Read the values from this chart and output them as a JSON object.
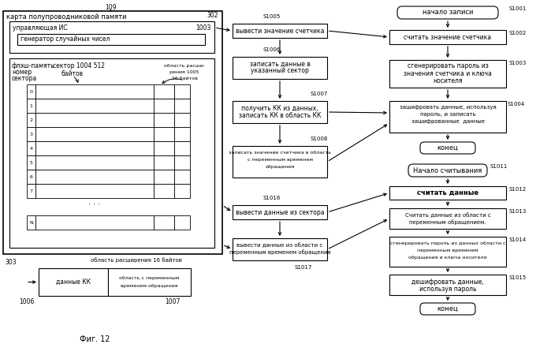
{
  "bg_color": "#ffffff",
  "fig_title": "Фиг. 12",
  "label_109": "109",
  "label_302": "302",
  "label_1003": "1003",
  "label_303": "303",
  "label_1006": "1006",
  "label_1007": "1007",
  "label_S1001": "S1001",
  "label_S1002": "S1002",
  "label_S1003": "S1003",
  "label_S1004": "S1004",
  "label_S1005": "S1005",
  "label_S1006": "S1006",
  "label_S1007": "S1007",
  "label_S1008": "S1008",
  "label_S1011": "S1011",
  "label_S1012": "S1012",
  "label_S1013": "S1013",
  "label_S1014": "S1014",
  "label_S1015": "S1015",
  "label_S1016": "S1016",
  "label_S1017": "S1017",
  "txt_card": "карта полупроводниковой памяти",
  "txt_ctrl": "управляющая ИС",
  "txt_gen": "генератор случайных чисел",
  "txt_flash": "флэш-память",
  "txt_sector_num": "номер",
  "txt_sector_num2": "сектора",
  "txt_sector1004": "сектор 1004 512",
  "txt_bytes": "байтов",
  "txt_ext1": "область расши-",
  "txt_ext2": "рения 1005",
  "txt_ext3": "16 байтов",
  "txt_ext_bot": "область расширения 16 байтов",
  "txt_kk": "данные КК",
  "txt_var": "область с переменным",
  "txt_var2": "временем обращения",
  "txt_start_write": "начало записи",
  "txt_read_counter": "считать значение счетчика",
  "txt_gen_pass1": "сгенерировать пароль из",
  "txt_gen_pass2": "значения счетчика и ключа",
  "txt_gen_pass3": "носителя",
  "txt_enc1": "зашифровать данные, используя",
  "txt_enc2": "пароль, и записать",
  "txt_enc3": "зашифрованные  данные",
  "txt_end": "конец",
  "txt_start_read": "Начало считывания",
  "txt_read_data": "считать данные",
  "txt_read_var1": "Считать данные из области с",
  "txt_read_var2": "переменным обращением.",
  "txt_gen_pass_read1": "сгенерировать пароль из данных области с",
  "txt_gen_pass_read2": "переменным временем",
  "txt_gen_pass_read3": "обращения и ключа носителя",
  "txt_dec1": "дешифровать данные,",
  "txt_dec2": "используя пароль",
  "txt_output_counter": "вывести значение счетчика",
  "txt_write_sector1": "записать данные в",
  "txt_write_sector2": "указанный сектор",
  "txt_get_kk1": "получить КК из данных,",
  "txt_get_kk2": "записать КК в область КК",
  "txt_write_counter1": "записать значение счетчика в область",
  "txt_write_counter2": "с переменным временем",
  "txt_write_counter3": "обращения",
  "txt_output_sector": "вывести данные из сектора",
  "txt_output_var1": "вывести данные из области с",
  "txt_output_var2": "переменным временем обращения",
  "rows": [
    "0",
    "1",
    "2",
    "3",
    "4",
    "5",
    "6",
    "7"
  ]
}
